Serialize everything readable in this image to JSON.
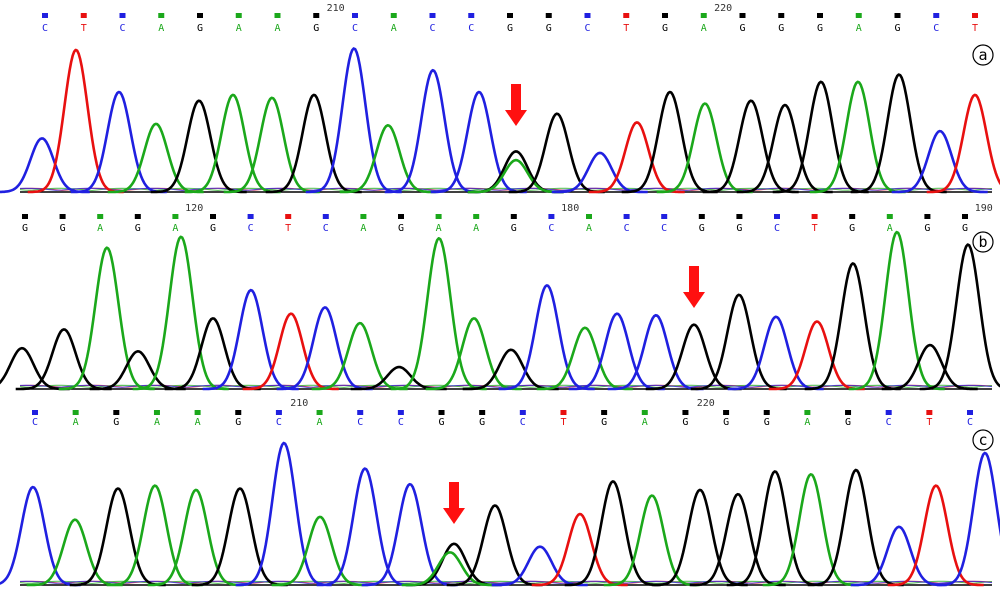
{
  "colors": {
    "A": "#1ba81b",
    "C": "#2020e0",
    "G": "#000000",
    "T": "#e81010",
    "arrow": "#ff1010",
    "baseline": "#000000"
  },
  "panels": [
    {
      "label": "a",
      "positions": [
        {
          "num": "210",
          "after_index": 7
        },
        {
          "num": "220",
          "after_index": 17
        }
      ],
      "bases": [
        "C",
        "T",
        "C",
        "A",
        "G",
        "A",
        "A",
        "G",
        "C",
        "A",
        "C",
        "C",
        "G",
        "G",
        "C",
        "T",
        "G",
        "A",
        "G",
        "G",
        "G",
        "A",
        "G",
        "C",
        "T"
      ],
      "peaks": [
        {
          "x": 42,
          "h": 0.37,
          "b": "C"
        },
        {
          "x": 76,
          "h": 0.98,
          "b": "T"
        },
        {
          "x": 119,
          "h": 0.69,
          "b": "C"
        },
        {
          "x": 156,
          "h": 0.47,
          "b": "A"
        },
        {
          "x": 199,
          "h": 0.63,
          "b": "G"
        },
        {
          "x": 233,
          "h": 0.67,
          "b": "A"
        },
        {
          "x": 272,
          "h": 0.65,
          "b": "A"
        },
        {
          "x": 314,
          "h": 0.67,
          "b": "G"
        },
        {
          "x": 354,
          "h": 0.99,
          "b": "C"
        },
        {
          "x": 388,
          "h": 0.46,
          "b": "A"
        },
        {
          "x": 433,
          "h": 0.84,
          "b": "C"
        },
        {
          "x": 479,
          "h": 0.69,
          "b": "C"
        },
        {
          "x": 516,
          "h": 0.28,
          "b": "G"
        },
        {
          "x": 516,
          "h": 0.22,
          "b": "A"
        },
        {
          "x": 557,
          "h": 0.54,
          "b": "G"
        },
        {
          "x": 600,
          "h": 0.27,
          "b": "C"
        },
        {
          "x": 637,
          "h": 0.48,
          "b": "T"
        },
        {
          "x": 670,
          "h": 0.69,
          "b": "G"
        },
        {
          "x": 705,
          "h": 0.61,
          "b": "A"
        },
        {
          "x": 751,
          "h": 0.63,
          "b": "G"
        },
        {
          "x": 785,
          "h": 0.6,
          "b": "G"
        },
        {
          "x": 821,
          "h": 0.76,
          "b": "G"
        },
        {
          "x": 858,
          "h": 0.76,
          "b": "A"
        },
        {
          "x": 899,
          "h": 0.81,
          "b": "G"
        },
        {
          "x": 940,
          "h": 0.42,
          "b": "C"
        },
        {
          "x": 975,
          "h": 0.67,
          "b": "T"
        }
      ],
      "arrow_x": 516
    },
    {
      "label": "b",
      "positions": [
        {
          "num": "120",
          "after_index": 4
        },
        {
          "num": "180",
          "after_index": 14
        },
        {
          "num": "190",
          "after_index": 25
        }
      ],
      "bases": [
        "G",
        "G",
        "A",
        "G",
        "A",
        "G",
        "C",
        "T",
        "C",
        "A",
        "G",
        "A",
        "A",
        "G",
        "C",
        "A",
        "C",
        "C",
        "G",
        "G",
        "C",
        "T",
        "G",
        "A",
        "G",
        "G"
      ],
      "peaks": [
        {
          "x": 22,
          "h": 0.26,
          "b": "G"
        },
        {
          "x": 64,
          "h": 0.38,
          "b": "G"
        },
        {
          "x": 107,
          "h": 0.9,
          "b": "A"
        },
        {
          "x": 138,
          "h": 0.24,
          "b": "G"
        },
        {
          "x": 181,
          "h": 0.97,
          "b": "A"
        },
        {
          "x": 213,
          "h": 0.45,
          "b": "G"
        },
        {
          "x": 251,
          "h": 0.63,
          "b": "C"
        },
        {
          "x": 291,
          "h": 0.48,
          "b": "T"
        },
        {
          "x": 325,
          "h": 0.52,
          "b": "C"
        },
        {
          "x": 360,
          "h": 0.42,
          "b": "A"
        },
        {
          "x": 399,
          "h": 0.14,
          "b": "G"
        },
        {
          "x": 439,
          "h": 0.96,
          "b": "A"
        },
        {
          "x": 474,
          "h": 0.45,
          "b": "A"
        },
        {
          "x": 511,
          "h": 0.25,
          "b": "G"
        },
        {
          "x": 547,
          "h": 0.66,
          "b": "C"
        },
        {
          "x": 585,
          "h": 0.39,
          "b": "A"
        },
        {
          "x": 617,
          "h": 0.48,
          "b": "C"
        },
        {
          "x": 656,
          "h": 0.47,
          "b": "C"
        },
        {
          "x": 694,
          "h": 0.41,
          "b": "G"
        },
        {
          "x": 739,
          "h": 0.6,
          "b": "G"
        },
        {
          "x": 776,
          "h": 0.46,
          "b": "C"
        },
        {
          "x": 817,
          "h": 0.43,
          "b": "T"
        },
        {
          "x": 853,
          "h": 0.8,
          "b": "G"
        },
        {
          "x": 897,
          "h": 1.0,
          "b": "A"
        },
        {
          "x": 930,
          "h": 0.28,
          "b": "G"
        },
        {
          "x": 968,
          "h": 0.92,
          "b": "G"
        }
      ],
      "arrow_x": 694
    },
    {
      "label": "c",
      "positions": [
        {
          "num": "210",
          "after_index": 6
        },
        {
          "num": "220",
          "after_index": 16
        }
      ],
      "bases": [
        "C",
        "A",
        "G",
        "A",
        "A",
        "G",
        "C",
        "A",
        "C",
        "C",
        "G",
        "G",
        "C",
        "T",
        "G",
        "A",
        "G",
        "G",
        "G",
        "A",
        "G",
        "C",
        "T",
        "C"
      ],
      "peaks": [
        {
          "x": 33,
          "h": 0.69,
          "b": "C"
        },
        {
          "x": 75,
          "h": 0.46,
          "b": "A"
        },
        {
          "x": 118,
          "h": 0.68,
          "b": "G"
        },
        {
          "x": 155,
          "h": 0.7,
          "b": "A"
        },
        {
          "x": 196,
          "h": 0.67,
          "b": "A"
        },
        {
          "x": 240,
          "h": 0.68,
          "b": "G"
        },
        {
          "x": 284,
          "h": 1.0,
          "b": "C"
        },
        {
          "x": 320,
          "h": 0.48,
          "b": "A"
        },
        {
          "x": 365,
          "h": 0.82,
          "b": "C"
        },
        {
          "x": 410,
          "h": 0.71,
          "b": "C"
        },
        {
          "x": 454,
          "h": 0.29,
          "b": "G"
        },
        {
          "x": 450,
          "h": 0.23,
          "b": "A"
        },
        {
          "x": 495,
          "h": 0.56,
          "b": "G"
        },
        {
          "x": 540,
          "h": 0.27,
          "b": "C"
        },
        {
          "x": 580,
          "h": 0.5,
          "b": "T"
        },
        {
          "x": 613,
          "h": 0.73,
          "b": "G"
        },
        {
          "x": 652,
          "h": 0.63,
          "b": "A"
        },
        {
          "x": 700,
          "h": 0.67,
          "b": "G"
        },
        {
          "x": 738,
          "h": 0.64,
          "b": "G"
        },
        {
          "x": 775,
          "h": 0.8,
          "b": "G"
        },
        {
          "x": 811,
          "h": 0.78,
          "b": "A"
        },
        {
          "x": 856,
          "h": 0.81,
          "b": "G"
        },
        {
          "x": 899,
          "h": 0.41,
          "b": "C"
        },
        {
          "x": 936,
          "h": 0.7,
          "b": "T"
        },
        {
          "x": 985,
          "h": 0.93,
          "b": "C"
        }
      ],
      "arrow_x": 454
    }
  ]
}
